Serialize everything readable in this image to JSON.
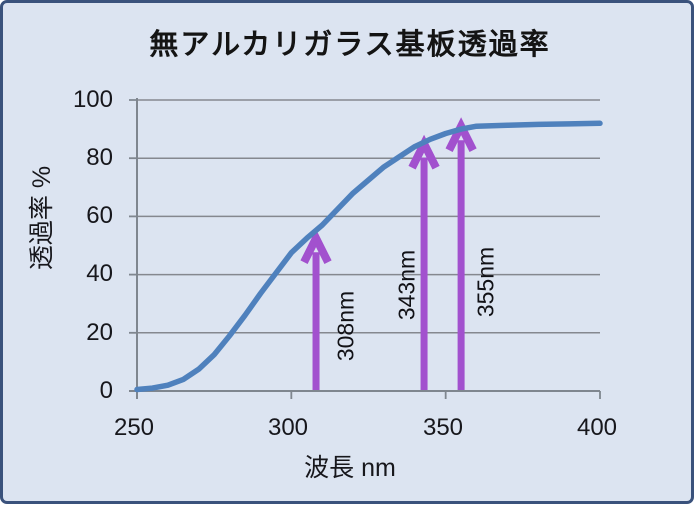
{
  "chart_data": {
    "type": "line",
    "title": "無アルカリガラス基板透過率",
    "xlabel": "波長 nm",
    "ylabel": "透過率 %",
    "xlim": [
      250,
      400
    ],
    "ylim": [
      0,
      100
    ],
    "xticks": [
      250,
      300,
      350,
      400
    ],
    "yticks": [
      0,
      20,
      40,
      60,
      80,
      100
    ],
    "xtick_labels": [
      "250",
      "300",
      "350",
      "400"
    ],
    "ytick_labels": [
      "0",
      "20",
      "40",
      "60",
      "80",
      "100"
    ],
    "grid": true,
    "legend": "none",
    "series": [
      {
        "name": "透過率",
        "color": "#4f81bd",
        "points": [
          [
            250,
            0.5
          ],
          [
            255,
            1
          ],
          [
            260,
            2
          ],
          [
            265,
            4
          ],
          [
            270,
            7.5
          ],
          [
            275,
            12.5
          ],
          [
            280,
            19
          ],
          [
            285,
            26
          ],
          [
            290,
            33.5
          ],
          [
            295,
            40.5
          ],
          [
            300,
            47.5
          ],
          [
            305,
            52.5
          ],
          [
            310,
            57
          ],
          [
            315,
            62.5
          ],
          [
            320,
            68
          ],
          [
            325,
            72.5
          ],
          [
            330,
            77
          ],
          [
            335,
            80.5
          ],
          [
            340,
            84
          ],
          [
            345,
            86.5
          ],
          [
            350,
            88.5
          ],
          [
            355,
            90
          ],
          [
            360,
            91
          ],
          [
            370,
            91.3
          ],
          [
            380,
            91.6
          ],
          [
            390,
            91.8
          ],
          [
            400,
            92
          ]
        ]
      }
    ],
    "annotations": [
      {
        "label": "308nm",
        "x_nm": 308,
        "tip_pct": 52.5,
        "color": "#a251ce"
      },
      {
        "label": "343nm",
        "x_nm": 343,
        "tip_pct": 85,
        "color": "#a251ce"
      },
      {
        "label": "355nm",
        "x_nm": 355,
        "tip_pct": 91,
        "color": "#a251ce"
      }
    ],
    "colors": {
      "background": "#dce4f1",
      "border": "#3a527c",
      "grid": "#85888f",
      "axis": "#7f868f",
      "text": "#17171c"
    }
  }
}
